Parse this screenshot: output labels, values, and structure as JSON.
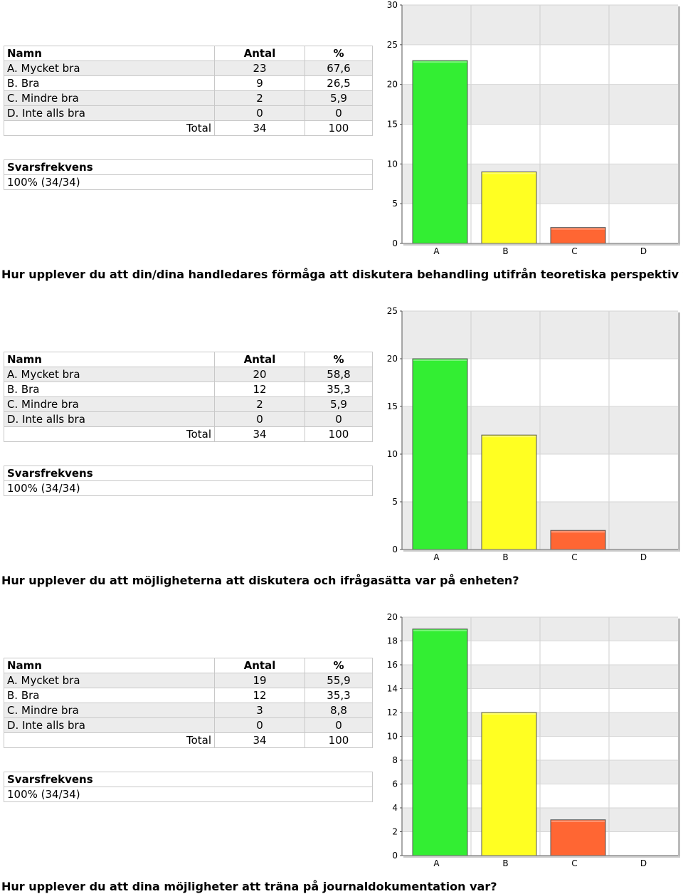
{
  "colors": {
    "A": "#33ee33",
    "B": "#ffff22",
    "C": "#ff6633",
    "D": "#cccccc"
  },
  "table_headers": {
    "name": "Namn",
    "count": "Antal",
    "pct": "%"
  },
  "freq_label": "Svarsfrekvens",
  "sections": [
    {
      "rows": [
        {
          "name": "A. Mycket bra",
          "count": "23",
          "pct": "67,6"
        },
        {
          "name": "B. Bra",
          "count": "9",
          "pct": "26,5"
        },
        {
          "name": "C. Mindre bra",
          "count": "2",
          "pct": "5,9"
        },
        {
          "name": "D. Inte alls bra",
          "count": "0",
          "pct": "0"
        }
      ],
      "total": {
        "label": "Total",
        "count": "34",
        "pct": "100"
      },
      "freq_value": "100% (34/34)",
      "chart_data": {
        "type": "bar",
        "categories": [
          "A",
          "B",
          "C",
          "D"
        ],
        "values": [
          23,
          9,
          2,
          0
        ],
        "ylim": [
          0,
          30
        ],
        "yticks": [
          0,
          5,
          10,
          15,
          20,
          25,
          30
        ]
      },
      "question": "Hur upplever du att din/dina handledares förmåga att diskutera behandling utifrån teoretiska perspektiv var?"
    },
    {
      "rows": [
        {
          "name": "A. Mycket bra",
          "count": "20",
          "pct": "58,8"
        },
        {
          "name": "B. Bra",
          "count": "12",
          "pct": "35,3"
        },
        {
          "name": "C. Mindre bra",
          "count": "2",
          "pct": "5,9"
        },
        {
          "name": "D. Inte alls bra",
          "count": "0",
          "pct": "0"
        }
      ],
      "total": {
        "label": "Total",
        "count": "34",
        "pct": "100"
      },
      "freq_value": "100% (34/34)",
      "chart_data": {
        "type": "bar",
        "categories": [
          "A",
          "B",
          "C",
          "D"
        ],
        "values": [
          20,
          12,
          2,
          0
        ],
        "ylim": [
          0,
          25
        ],
        "yticks": [
          0,
          5,
          10,
          15,
          20,
          25
        ]
      },
      "question": "Hur upplever du att möjligheterna att diskutera och ifrågasätta var på enheten?"
    },
    {
      "rows": [
        {
          "name": "A. Mycket bra",
          "count": "19",
          "pct": "55,9"
        },
        {
          "name": "B. Bra",
          "count": "12",
          "pct": "35,3"
        },
        {
          "name": "C. Mindre bra",
          "count": "3",
          "pct": "8,8"
        },
        {
          "name": "D. Inte alls bra",
          "count": "0",
          "pct": "0"
        }
      ],
      "total": {
        "label": "Total",
        "count": "34",
        "pct": "100"
      },
      "freq_value": "100% (34/34)",
      "chart_data": {
        "type": "bar",
        "categories": [
          "A",
          "B",
          "C",
          "D"
        ],
        "values": [
          19,
          12,
          3,
          0
        ],
        "ylim": [
          0,
          20
        ],
        "yticks": [
          0,
          2,
          4,
          6,
          8,
          10,
          12,
          14,
          16,
          18,
          20
        ]
      },
      "question": "Hur upplever du att dina möjligheter att träna på journaldokumentation var?"
    }
  ]
}
